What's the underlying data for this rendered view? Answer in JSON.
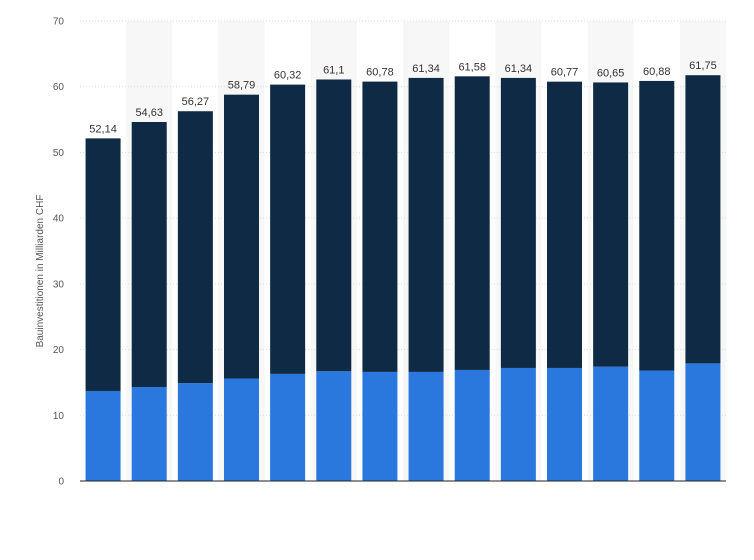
{
  "chart_data": {
    "type": "bar",
    "stacked": true,
    "categories": [
      "",
      "",
      "",
      "",
      "",
      "",
      "",
      "",
      "",
      "",
      "",
      "",
      "",
      ""
    ],
    "series": [
      {
        "values": [
          13.7,
          14.3,
          14.9,
          15.6,
          16.3,
          16.7,
          16.6,
          16.6,
          16.9,
          17.2,
          17.2,
          17.4,
          16.8,
          17.9
        ]
      },
      {
        "values": [
          38.44,
          40.33,
          41.37,
          43.19,
          44.02,
          44.4,
          44.18,
          44.74,
          44.68,
          44.14,
          43.57,
          43.25,
          44.08,
          43.85
        ]
      }
    ],
    "totals": [
      52.14,
      54.63,
      56.27,
      58.79,
      60.32,
      61.1,
      60.78,
      61.34,
      61.58,
      61.34,
      60.77,
      60.65,
      60.88,
      61.75
    ],
    "total_labels": [
      "52,14",
      "54,63",
      "56,27",
      "58,79",
      "60,32",
      "61,1",
      "60,78",
      "61,34",
      "61,58",
      "61,34",
      "60,77",
      "60,65",
      "60,88",
      "61,75"
    ],
    "title": "",
    "xlabel": "",
    "ylabel": "Bauinvestitionen in Milliarden CHF",
    "ylim": [
      0,
      70
    ],
    "yticks": [
      0,
      10,
      20,
      30,
      40,
      50,
      60,
      70
    ],
    "ytick_labels": [
      "0",
      "10",
      "20",
      "30",
      "40",
      "50",
      "60",
      "70"
    ],
    "grid": true,
    "legend": "none",
    "colors": {
      "lower_segment": "#2a77dd",
      "upper_segment": "#0f2a44",
      "alt_band": "#f7f7f7",
      "grid": "#dddddd",
      "baseline": "#222222"
    }
  }
}
